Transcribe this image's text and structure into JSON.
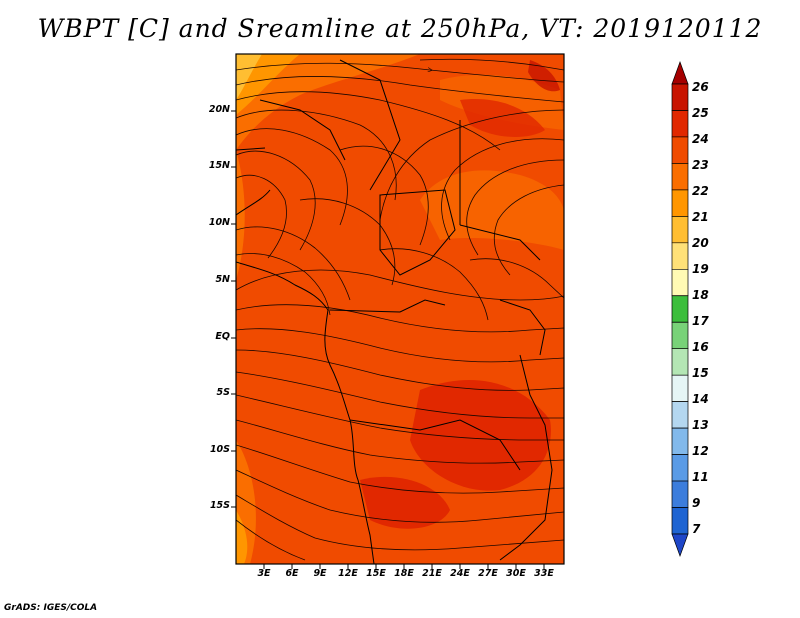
{
  "title": "WBPT [C] and Sreamline at 250hPa, VT: 2019120112",
  "credit": "GrADS: IGES/COLA",
  "map": {
    "variable": "WBPT [C]",
    "level": "250hPa",
    "valid_time": "2019120112",
    "lat_labels": [
      "20N",
      "15N",
      "10N",
      "5N",
      "EQ",
      "5S",
      "10S",
      "15S"
    ],
    "lon_labels": [
      "3E",
      "6E",
      "9E",
      "12E",
      "15E",
      "18E",
      "21E",
      "24E",
      "27E",
      "30E",
      "33E"
    ]
  },
  "colorbar": {
    "levels": [
      "26",
      "25",
      "24",
      "23",
      "22",
      "21",
      "20",
      "19",
      "18",
      "17",
      "16",
      "15",
      "14",
      "13",
      "12",
      "11",
      "9",
      "7"
    ],
    "colors": [
      "#a50000",
      "#c81400",
      "#e12800",
      "#f04b00",
      "#fa6e00",
      "#ff9600",
      "#ffbe32",
      "#ffe178",
      "#fffab4",
      "#3cbe3c",
      "#78d278",
      "#b4e6b4",
      "#e6f5f5",
      "#b4d7f0",
      "#82b9eb",
      "#5a9be6",
      "#3c7ddc",
      "#1e64d2",
      "#1e46c8"
    ]
  }
}
